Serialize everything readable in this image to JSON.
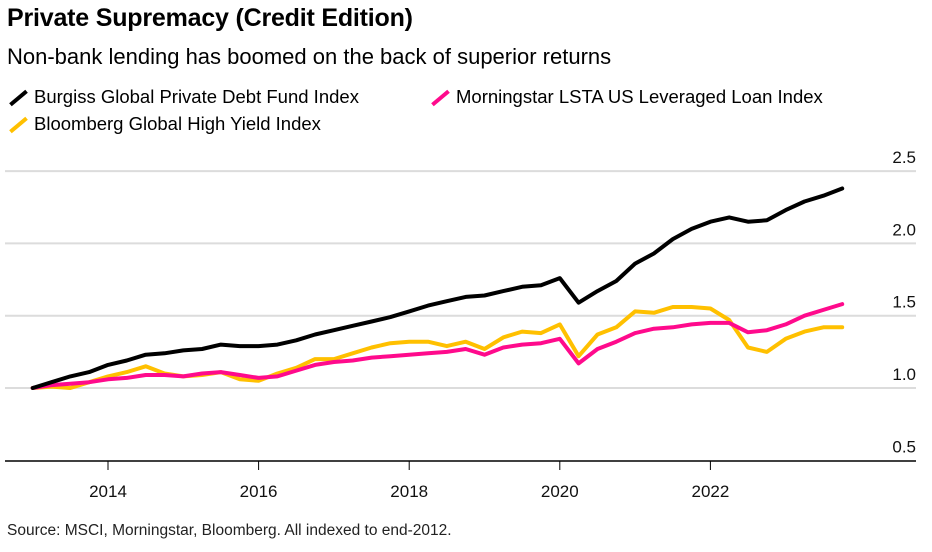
{
  "chart_data": {
    "type": "line",
    "title": "Private Supremacy (Credit Edition)",
    "subtitle": "Non-bank lending has boomed on the back of superior returns",
    "source": "Source: MSCI, Morningstar, Bloomberg. All indexed to end-2012.",
    "ylim": [
      0.5,
      2.5
    ],
    "yticks": [
      "0.5",
      "1.0",
      "1.5",
      "2.0",
      "2.5"
    ],
    "xticks": [
      "2014",
      "2016",
      "2018",
      "2020",
      "2022"
    ],
    "grid": true,
    "legend": "top-left",
    "x": [
      "2012-12",
      "2013-03",
      "2013-06",
      "2013-09",
      "2013-12",
      "2014-03",
      "2014-06",
      "2014-09",
      "2014-12",
      "2015-03",
      "2015-06",
      "2015-09",
      "2015-12",
      "2016-03",
      "2016-06",
      "2016-09",
      "2016-12",
      "2017-03",
      "2017-06",
      "2017-09",
      "2017-12",
      "2018-03",
      "2018-06",
      "2018-09",
      "2018-12",
      "2019-03",
      "2019-06",
      "2019-09",
      "2019-12",
      "2020-03",
      "2020-06",
      "2020-09",
      "2020-12",
      "2021-03",
      "2021-06",
      "2021-09",
      "2021-12",
      "2022-03",
      "2022-06",
      "2022-09",
      "2022-12",
      "2023-03",
      "2023-06",
      "2023-09"
    ],
    "series": [
      {
        "name": "Burgiss Global Private Debt Fund Index",
        "color": "#000000",
        "values": [
          1.0,
          1.04,
          1.08,
          1.11,
          1.16,
          1.19,
          1.23,
          1.24,
          1.26,
          1.27,
          1.3,
          1.29,
          1.29,
          1.3,
          1.33,
          1.37,
          1.4,
          1.43,
          1.46,
          1.49,
          1.53,
          1.57,
          1.6,
          1.63,
          1.64,
          1.67,
          1.7,
          1.71,
          1.76,
          1.59,
          1.67,
          1.74,
          1.86,
          1.93,
          2.03,
          2.1,
          2.15,
          2.18,
          2.15,
          2.16,
          2.23,
          2.29,
          2.33,
          2.38
        ]
      },
      {
        "name": "Morningstar LSTA US Leveraged Loan Index",
        "color": "#ff0a8c",
        "values": [
          1.0,
          1.02,
          1.03,
          1.04,
          1.06,
          1.07,
          1.09,
          1.09,
          1.08,
          1.1,
          1.11,
          1.09,
          1.07,
          1.08,
          1.12,
          1.16,
          1.18,
          1.19,
          1.21,
          1.22,
          1.23,
          1.24,
          1.25,
          1.27,
          1.23,
          1.28,
          1.3,
          1.31,
          1.34,
          1.17,
          1.27,
          1.32,
          1.38,
          1.41,
          1.42,
          1.44,
          1.45,
          1.45,
          1.385,
          1.4,
          1.44,
          1.5,
          1.54,
          1.58
        ]
      },
      {
        "name": "Bloomberg Global High Yield Index",
        "color": "#ffc000",
        "values": [
          1.0,
          1.01,
          1.0,
          1.04,
          1.08,
          1.11,
          1.15,
          1.1,
          1.08,
          1.09,
          1.11,
          1.06,
          1.05,
          1.1,
          1.14,
          1.2,
          1.2,
          1.24,
          1.28,
          1.31,
          1.32,
          1.32,
          1.29,
          1.32,
          1.27,
          1.35,
          1.39,
          1.38,
          1.44,
          1.22,
          1.37,
          1.42,
          1.53,
          1.52,
          1.56,
          1.56,
          1.55,
          1.47,
          1.28,
          1.25,
          1.34,
          1.39,
          1.42,
          1.42
        ]
      }
    ]
  }
}
